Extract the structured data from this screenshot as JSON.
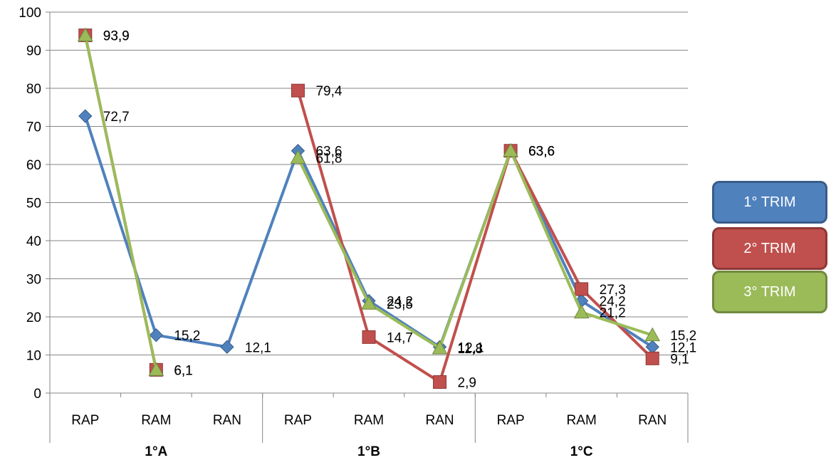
{
  "chart_data": {
    "type": "line",
    "title": "",
    "xlabel": "",
    "ylabel": "",
    "ylim": [
      0,
      100
    ],
    "yticks": [
      0,
      10,
      20,
      30,
      40,
      50,
      60,
      70,
      80,
      90,
      100
    ],
    "grid": true,
    "legend_position": "right",
    "groups": [
      {
        "label": "1°A",
        "categories": [
          "RAP",
          "RAM",
          "RAN"
        ]
      },
      {
        "label": "1°B",
        "categories": [
          "RAP",
          "RAM",
          "RAN"
        ]
      },
      {
        "label": "1°C",
        "categories": [
          "RAP",
          "RAM",
          "RAN"
        ]
      }
    ],
    "categories": [
      "RAP",
      "RAM",
      "RAN",
      "RAP",
      "RAM",
      "RAN",
      "RAP",
      "RAM",
      "RAN"
    ],
    "series": [
      {
        "name": "1° TRIM",
        "color": "#4F81BD",
        "border": "#385D8A",
        "marker": "diamond",
        "values": [
          72.7,
          15.2,
          12.1,
          63.6,
          24.2,
          12.1,
          63.6,
          24.2,
          12.1
        ],
        "labels": [
          "72,7",
          "15,2",
          "12,1",
          "63,6",
          "24,2",
          "12,1",
          "63,6",
          "24,2",
          "12,1"
        ]
      },
      {
        "name": "2° TRIM",
        "color": "#C0504D",
        "border": "#8C3836",
        "marker": "square",
        "values": [
          93.9,
          6.1,
          null,
          79.4,
          14.7,
          2.9,
          63.6,
          27.3,
          9.1
        ],
        "labels": [
          "93,9",
          "6,1",
          null,
          "79,4",
          "14,7",
          "2,9",
          "63,6",
          "27,3",
          "9,1"
        ]
      },
      {
        "name": "3° TRIM",
        "color": "#9BBB59",
        "border": "#71893F",
        "marker": "triangle",
        "values": [
          93.9,
          6.1,
          null,
          61.8,
          23.5,
          11.8,
          63.6,
          21.2,
          15.2
        ],
        "labels": [
          "93,9",
          "6,1",
          null,
          "61,8",
          "23,5",
          "11,8",
          "63,6",
          "21,2",
          "15,2"
        ]
      }
    ]
  }
}
